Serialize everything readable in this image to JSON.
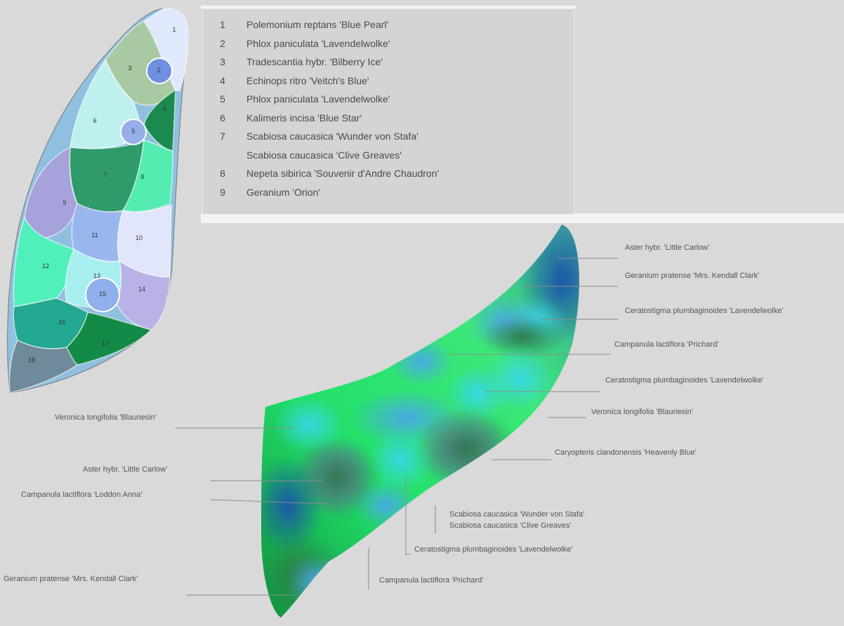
{
  "legend": {
    "items": [
      {
        "num": "1",
        "name": "Polemonium reptans 'Blue Pearl'"
      },
      {
        "num": "2",
        "name": "Phlox paniculata 'Lavendelwolke'"
      },
      {
        "num": "3",
        "name": "Tradescantia hybr. 'Bilberry Ice'"
      },
      {
        "num": "4",
        "name": "Echinops ritro 'Veitch's Blue'"
      },
      {
        "num": "5",
        "name": "Phlox paniculata 'Lavendelwolke'"
      },
      {
        "num": "6",
        "name": "Kalimeris incisa 'Blue Star'"
      },
      {
        "num": "7",
        "name": "Scabiosa caucasica 'Wunder von Stafa'"
      },
      {
        "num": "",
        "name": "Scabiosa caucasica 'Clive Greaves'"
      },
      {
        "num": "8",
        "name": "Nepeta sibirica 'Souvenir d'Andre Chaudron'"
      },
      {
        "num": "9",
        "name": "Geranium 'Orion'"
      }
    ]
  },
  "bed_plan": {
    "areas": [
      {
        "num": "1",
        "color": "#dfe9fb"
      },
      {
        "num": "2",
        "color": "#6f8fe0"
      },
      {
        "num": "3",
        "color": "#a9c9a3"
      },
      {
        "num": "4",
        "color": "#1b8a4e"
      },
      {
        "num": "5",
        "color": "#98aee8"
      },
      {
        "num": "6",
        "color": "#bff0f0"
      },
      {
        "num": "7",
        "color": "#2f9a6a"
      },
      {
        "num": "8",
        "color": "#55ecb2"
      },
      {
        "num": "9",
        "color": "#a6a2dc"
      },
      {
        "num": "10",
        "color": "#e1e6fb"
      },
      {
        "num": "11",
        "color": "#9ab6ef"
      },
      {
        "num": "12",
        "color": "#4ff0bc"
      },
      {
        "num": "13",
        "color": "#a7efee"
      },
      {
        "num": "14",
        "color": "#b9b2e6"
      },
      {
        "num": "15",
        "color": "#8fb0eb"
      },
      {
        "num": "16",
        "color": "#23a891"
      },
      {
        "num": "17",
        "color": "#138a45"
      },
      {
        "num": "18",
        "color": "#6f8a9a"
      }
    ]
  },
  "perspective_labels": [
    "Aster hybr. 'Little Carlow'",
    "Geranium pratense 'Mrs. Kendall Clark'",
    "Ceratostigma plumbaginoides 'Lavendelwolke'",
    "Campanula lactiflora 'Prichard'",
    "Ceratostigma plumbaginoides 'Lavendelwolke'",
    "Veronica longifolia 'Blauriesin'",
    "Veronica longifolia 'Blauriesin'",
    "Caryopteris clandonensis 'Heavenly Blue'",
    "Aster hybr. 'Little Carlow'",
    "Campanula lactiflora 'Loddon Anna'",
    "Scabiosa caucasica 'Wunder von Stafa'",
    "Scabiosa caucasica 'Clive Greaves'",
    "Ceratostigma plumbaginoides 'Lavendelwolke'",
    "Geranium pratense 'Mrs. Kendall Clark'",
    "Campanula lactiflora 'Prichard'"
  ]
}
